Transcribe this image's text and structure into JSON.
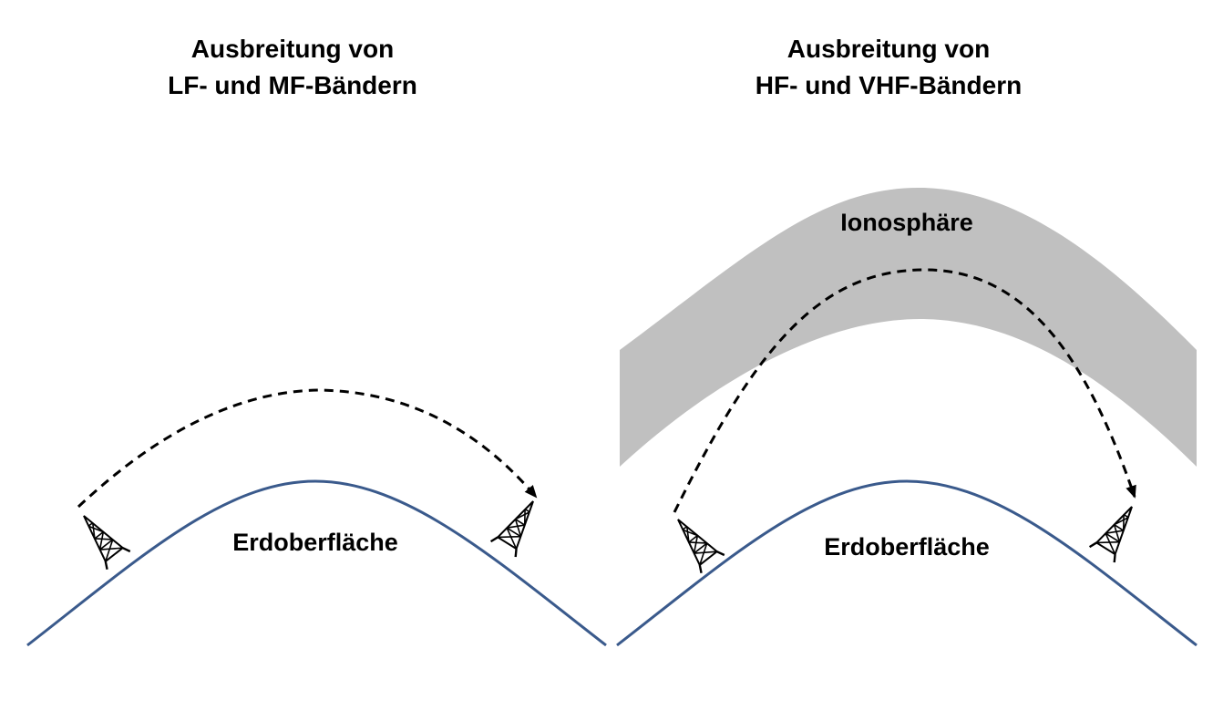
{
  "left_panel": {
    "title_line1": "Ausbreitung von",
    "title_line2": "LF- und MF-Bändern",
    "surface_label": "Erdoberfläche"
  },
  "right_panel": {
    "title_line1": "Ausbreitung von",
    "title_line2": "HF- und VHF-Bändern",
    "surface_label": "Erdoberfläche",
    "ionosphere_label": "Ionosphäre"
  },
  "colors": {
    "earth_curve": "#3a5a8c",
    "ionosphere": "#c0c0c0",
    "wave_path": "#000000",
    "text": "#000000"
  },
  "icons": {
    "tower": "radio-tower-icon",
    "arrow": "arrowhead-icon"
  }
}
